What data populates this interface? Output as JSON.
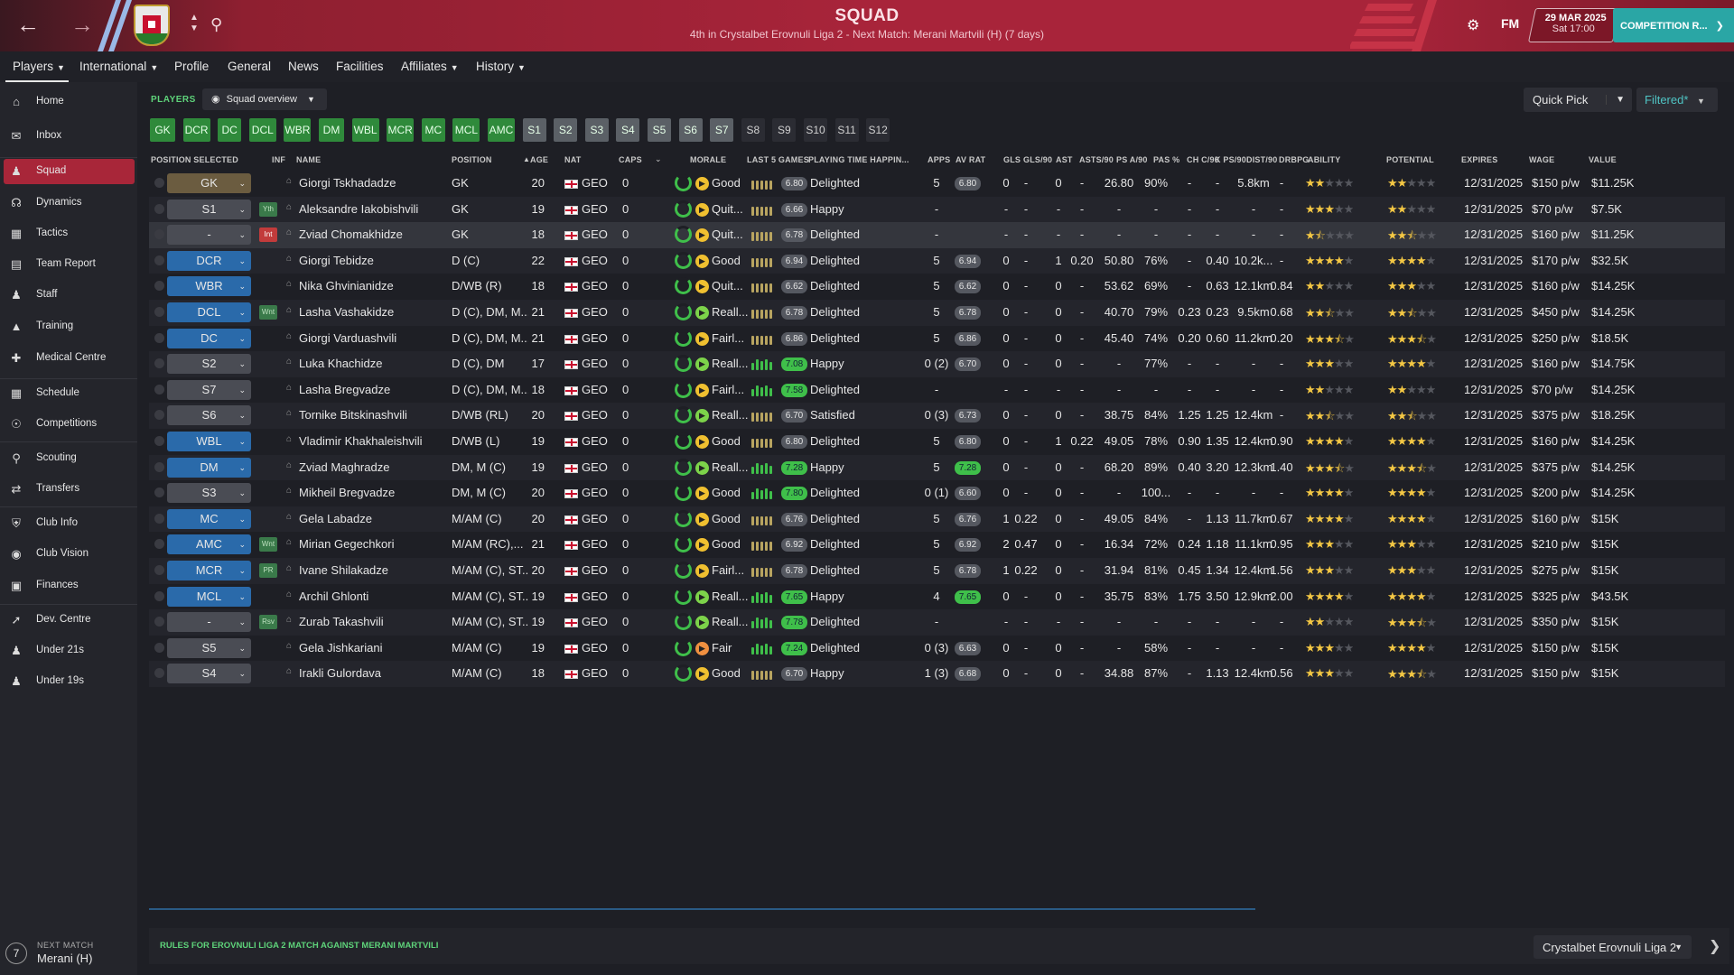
{
  "header": {
    "title": "SQUAD",
    "subtitle": "4th in Crystalbet Erovnuli Liga 2 - Next Match: Merani Martvili (H) (7 days)",
    "date": "29 MAR 2025",
    "time": "Sat 17:00",
    "logo_text": "FM",
    "competition_button": "COMPETITION R..."
  },
  "menu": {
    "tabs": [
      "Players",
      "International",
      "Profile",
      "General",
      "News",
      "Facilities",
      "Affiliates",
      "History"
    ]
  },
  "sidebar": {
    "items": [
      "Home",
      "Inbox",
      "Squad",
      "Dynamics",
      "Tactics",
      "Team Report",
      "Staff",
      "Training",
      "Medical Centre",
      "Schedule",
      "Competitions",
      "Scouting",
      "Transfers",
      "Club Info",
      "Club Vision",
      "Finances",
      "Dev. Centre",
      "Under 21s",
      "Under 19s"
    ],
    "next_match_label": "NEXT MATCH",
    "next_match_value": "Merani (H)",
    "next_match_days": "7"
  },
  "toolbar": {
    "section_label": "PLAYERS",
    "view_label": "Squad overview",
    "quick_pick": "Quick Pick",
    "filter": "Filtered*"
  },
  "pills": [
    "GK",
    "DCR",
    "DC",
    "DCL",
    "WBR",
    "DM",
    "WBL",
    "MCR",
    "MC",
    "MCL",
    "AMC",
    "S1",
    "S2",
    "S3",
    "S4",
    "S5",
    "S6",
    "S7",
    "S8",
    "S9",
    "S10",
    "S11",
    "S12"
  ],
  "columns": [
    "POSITION SELECTED",
    "INF",
    "NAME",
    "POSITION",
    "AGE",
    "NAT",
    "CAPS",
    "MORALE",
    "LAST 5 GAMES",
    "PLAYING TIME HAPPIN...",
    "APPS",
    "AV RAT",
    "GLS",
    "GLS/90",
    "AST",
    "ASTS/90",
    "PS A/90",
    "PAS %",
    "CH C/90",
    "K PS/90",
    "DIST/90",
    "DRBPG",
    "ABILITY",
    "POTENTIAL",
    "EXPIRES",
    "WAGE",
    "VALUE"
  ],
  "players": [
    {
      "sel": "GK",
      "inf": "",
      "name": "Giorgi Tskhadadze",
      "position": "GK",
      "age": "20",
      "nat": "GEO",
      "caps": "0",
      "morale": "Good",
      "last5": "6.80",
      "happiness": "Delighted",
      "apps": "5",
      "avrat": "6.80",
      "gls": "0",
      "gls90": "-",
      "ast": "0",
      "ast90": "-",
      "psa90": "26.80",
      "pas": "90%",
      "chc90": "-",
      "kps90": "-",
      "dist90": "5.8km",
      "drbpg": "-",
      "ability": 2,
      "potential": 2,
      "expires": "12/31/2025",
      "wage": "$150 p/w",
      "value": "$11.25K"
    },
    {
      "sel": "S1",
      "inf": "Yth",
      "name": "Aleksandre Iakobishvili",
      "position": "GK",
      "age": "19",
      "nat": "GEO",
      "caps": "0",
      "morale": "Quit...",
      "last5": "6.66",
      "happiness": "Happy",
      "apps": "-",
      "avrat": "",
      "gls": "-",
      "gls90": "-",
      "ast": "-",
      "ast90": "-",
      "psa90": "-",
      "pas": "-",
      "chc90": "-",
      "kps90": "-",
      "dist90": "-",
      "drbpg": "-",
      "ability": 3,
      "potential": 2,
      "expires": "12/31/2025",
      "wage": "$70 p/w",
      "value": "$7.5K"
    },
    {
      "sel": "-",
      "inf": "Int",
      "name": "Zviad Chomakhidze",
      "position": "GK",
      "age": "18",
      "nat": "GEO",
      "caps": "0",
      "morale": "Quit...",
      "last5": "6.78",
      "happiness": "Delighted",
      "apps": "-",
      "avrat": "",
      "gls": "-",
      "gls90": "-",
      "ast": "-",
      "ast90": "-",
      "psa90": "-",
      "pas": "-",
      "chc90": "-",
      "kps90": "-",
      "dist90": "-",
      "drbpg": "-",
      "ability": 1.5,
      "potential": 2.5,
      "expires": "12/31/2025",
      "wage": "$160 p/w",
      "value": "$11.25K"
    },
    {
      "sel": "DCR",
      "inf": "",
      "name": "Giorgi Tebidze",
      "position": "D (C)",
      "age": "22",
      "nat": "GEO",
      "caps": "0",
      "morale": "Good",
      "last5": "6.94",
      "happiness": "Delighted",
      "apps": "5",
      "avrat": "6.94",
      "gls": "0",
      "gls90": "-",
      "ast": "1",
      "ast90": "0.20",
      "psa90": "50.80",
      "pas": "76%",
      "chc90": "-",
      "kps90": "0.40",
      "dist90": "10.2k...",
      "drbpg": "-",
      "ability": 4,
      "potential": 4,
      "expires": "12/31/2025",
      "wage": "$170 p/w",
      "value": "$32.5K"
    },
    {
      "sel": "WBR",
      "inf": "",
      "name": "Nika Ghvinianidze",
      "position": "D/WB (R)",
      "age": "18",
      "nat": "GEO",
      "caps": "0",
      "morale": "Quit...",
      "last5": "6.62",
      "happiness": "Delighted",
      "apps": "5",
      "avrat": "6.62",
      "gls": "0",
      "gls90": "-",
      "ast": "0",
      "ast90": "-",
      "psa90": "53.62",
      "pas": "69%",
      "chc90": "-",
      "kps90": "0.63",
      "dist90": "12.1km",
      "drbpg": "0.84",
      "ability": 2,
      "potential": 3,
      "expires": "12/31/2025",
      "wage": "$160 p/w",
      "value": "$14.25K"
    },
    {
      "sel": "DCL",
      "inf": "Wnt",
      "name": "Lasha Vashakidze",
      "position": "D (C), DM, M...",
      "age": "21",
      "nat": "GEO",
      "caps": "0",
      "morale": "Reall...",
      "last5": "6.78",
      "happiness": "Delighted",
      "apps": "5",
      "avrat": "6.78",
      "gls": "0",
      "gls90": "-",
      "ast": "0",
      "ast90": "-",
      "psa90": "40.70",
      "pas": "79%",
      "chc90": "0.23",
      "kps90": "0.23",
      "dist90": "9.5km",
      "drbpg": "0.68",
      "ability": 2.5,
      "potential": 2.5,
      "expires": "12/31/2025",
      "wage": "$450 p/w",
      "value": "$14.25K"
    },
    {
      "sel": "DC",
      "inf": "",
      "name": "Giorgi Varduashvili",
      "position": "D (C), DM, M...",
      "age": "21",
      "nat": "GEO",
      "caps": "0",
      "morale": "Fairl...",
      "last5": "6.86",
      "happiness": "Delighted",
      "apps": "5",
      "avrat": "6.86",
      "gls": "0",
      "gls90": "-",
      "ast": "0",
      "ast90": "-",
      "psa90": "45.40",
      "pas": "74%",
      "chc90": "0.20",
      "kps90": "0.60",
      "dist90": "11.2km",
      "drbpg": "0.20",
      "ability": 3.5,
      "potential": 3.5,
      "expires": "12/31/2025",
      "wage": "$250 p/w",
      "value": "$18.5K"
    },
    {
      "sel": "S2",
      "inf": "",
      "name": "Luka Khachidze",
      "position": "D (C), DM",
      "age": "17",
      "nat": "GEO",
      "caps": "0",
      "morale": "Reall...",
      "last5": "7.08",
      "happiness": "Happy",
      "apps": "0 (2)",
      "avrat": "6.70",
      "gls": "0",
      "gls90": "-",
      "ast": "0",
      "ast90": "-",
      "psa90": "-",
      "pas": "77%",
      "chc90": "-",
      "kps90": "-",
      "dist90": "-",
      "drbpg": "-",
      "ability": 3,
      "potential": 4,
      "expires": "12/31/2025",
      "wage": "$160 p/w",
      "value": "$14.75K"
    },
    {
      "sel": "S7",
      "inf": "",
      "name": "Lasha Bregvadze",
      "position": "D (C), DM, M...",
      "age": "18",
      "nat": "GEO",
      "caps": "0",
      "morale": "Fairl...",
      "last5": "7.58",
      "happiness": "Delighted",
      "apps": "-",
      "avrat": "",
      "gls": "-",
      "gls90": "-",
      "ast": "-",
      "ast90": "-",
      "psa90": "-",
      "pas": "-",
      "chc90": "-",
      "kps90": "-",
      "dist90": "-",
      "drbpg": "-",
      "ability": 2,
      "potential": 2,
      "expires": "12/31/2025",
      "wage": "$70 p/w",
      "value": "$14.25K"
    },
    {
      "sel": "S6",
      "inf": "",
      "name": "Tornike Bitskinashvili",
      "position": "D/WB (RL)",
      "age": "20",
      "nat": "GEO",
      "caps": "0",
      "morale": "Reall...",
      "last5": "6.70",
      "happiness": "Satisfied",
      "apps": "0 (3)",
      "avrat": "6.73",
      "gls": "0",
      "gls90": "-",
      "ast": "0",
      "ast90": "-",
      "psa90": "38.75",
      "pas": "84%",
      "chc90": "1.25",
      "kps90": "1.25",
      "dist90": "12.4km",
      "drbpg": "-",
      "ability": 2.5,
      "potential": 2.5,
      "expires": "12/31/2025",
      "wage": "$375 p/w",
      "value": "$18.25K"
    },
    {
      "sel": "WBL",
      "inf": "",
      "name": "Vladimir Khakhaleishvili",
      "position": "D/WB (L)",
      "age": "19",
      "nat": "GEO",
      "caps": "0",
      "morale": "Good",
      "last5": "6.80",
      "happiness": "Delighted",
      "apps": "5",
      "avrat": "6.80",
      "gls": "0",
      "gls90": "-",
      "ast": "1",
      "ast90": "0.22",
      "psa90": "49.05",
      "pas": "78%",
      "chc90": "0.90",
      "kps90": "1.35",
      "dist90": "12.4km",
      "drbpg": "0.90",
      "ability": 4,
      "potential": 4,
      "expires": "12/31/2025",
      "wage": "$160 p/w",
      "value": "$14.25K"
    },
    {
      "sel": "DM",
      "inf": "",
      "name": "Zviad Maghradze",
      "position": "DM, M (C)",
      "age": "19",
      "nat": "GEO",
      "caps": "0",
      "morale": "Reall...",
      "last5": "7.28",
      "happiness": "Happy",
      "apps": "5",
      "avrat": "7.28",
      "gls": "0",
      "gls90": "-",
      "ast": "0",
      "ast90": "-",
      "psa90": "68.20",
      "pas": "89%",
      "chc90": "0.40",
      "kps90": "3.20",
      "dist90": "12.3km",
      "drbpg": "1.40",
      "ability": 3.5,
      "potential": 3.5,
      "expires": "12/31/2025",
      "wage": "$375 p/w",
      "value": "$14.25K"
    },
    {
      "sel": "S3",
      "inf": "",
      "name": "Mikheil Bregvadze",
      "position": "DM, M (C)",
      "age": "20",
      "nat": "GEO",
      "caps": "0",
      "morale": "Good",
      "last5": "7.80",
      "happiness": "Delighted",
      "apps": "0 (1)",
      "avrat": "6.60",
      "gls": "0",
      "gls90": "-",
      "ast": "0",
      "ast90": "-",
      "psa90": "-",
      "pas": "100...",
      "chc90": "-",
      "kps90": "-",
      "dist90": "-",
      "drbpg": "-",
      "ability": 4,
      "potential": 4,
      "expires": "12/31/2025",
      "wage": "$200 p/w",
      "value": "$14.25K"
    },
    {
      "sel": "MC",
      "inf": "",
      "name": "Gela Labadze",
      "position": "M/AM (C)",
      "age": "20",
      "nat": "GEO",
      "caps": "0",
      "morale": "Good",
      "last5": "6.76",
      "happiness": "Delighted",
      "apps": "5",
      "avrat": "6.76",
      "gls": "1",
      "gls90": "0.22",
      "ast": "0",
      "ast90": "-",
      "psa90": "49.05",
      "pas": "84%",
      "chc90": "-",
      "kps90": "1.13",
      "dist90": "11.7km",
      "drbpg": "0.67",
      "ability": 4,
      "potential": 4,
      "expires": "12/31/2025",
      "wage": "$160 p/w",
      "value": "$15K"
    },
    {
      "sel": "AMC",
      "inf": "Wnt",
      "name": "Mirian Gegechkori",
      "position": "M/AM (RC),...",
      "age": "21",
      "nat": "GEO",
      "caps": "0",
      "morale": "Good",
      "last5": "6.92",
      "happiness": "Delighted",
      "apps": "5",
      "avrat": "6.92",
      "gls": "2",
      "gls90": "0.47",
      "ast": "0",
      "ast90": "-",
      "psa90": "16.34",
      "pas": "72%",
      "chc90": "0.24",
      "kps90": "1.18",
      "dist90": "11.1km",
      "drbpg": "0.95",
      "ability": 3,
      "potential": 3,
      "expires": "12/31/2025",
      "wage": "$210 p/w",
      "value": "$15K"
    },
    {
      "sel": "MCR",
      "inf": "PR",
      "name": "Ivane Shilakadze",
      "position": "M/AM (C), ST...",
      "age": "20",
      "nat": "GEO",
      "caps": "0",
      "morale": "Fairl...",
      "last5": "6.78",
      "happiness": "Delighted",
      "apps": "5",
      "avrat": "6.78",
      "gls": "1",
      "gls90": "0.22",
      "ast": "0",
      "ast90": "-",
      "psa90": "31.94",
      "pas": "81%",
      "chc90": "0.45",
      "kps90": "1.34",
      "dist90": "12.4km",
      "drbpg": "1.56",
      "ability": 3,
      "potential": 3,
      "expires": "12/31/2025",
      "wage": "$275 p/w",
      "value": "$15K"
    },
    {
      "sel": "MCL",
      "inf": "",
      "name": "Archil Ghlonti",
      "position": "M/AM (C), ST...",
      "age": "19",
      "nat": "GEO",
      "caps": "0",
      "morale": "Reall...",
      "last5": "7.65",
      "happiness": "Happy",
      "apps": "4",
      "avrat": "7.65",
      "gls": "0",
      "gls90": "-",
      "ast": "0",
      "ast90": "-",
      "psa90": "35.75",
      "pas": "83%",
      "chc90": "1.75",
      "kps90": "3.50",
      "dist90": "12.9km",
      "drbpg": "2.00",
      "ability": 4,
      "potential": 4,
      "expires": "12/31/2025",
      "wage": "$325 p/w",
      "value": "$43.5K"
    },
    {
      "sel": "-",
      "inf": "Rsv",
      "name": "Zurab Takashvili",
      "position": "M/AM (C), ST...",
      "age": "19",
      "nat": "GEO",
      "caps": "0",
      "morale": "Reall...",
      "last5": "7.78",
      "happiness": "Delighted",
      "apps": "-",
      "avrat": "",
      "gls": "-",
      "gls90": "-",
      "ast": "-",
      "ast90": "-",
      "psa90": "-",
      "pas": "-",
      "chc90": "-",
      "kps90": "-",
      "dist90": "-",
      "drbpg": "-",
      "ability": 2,
      "potential": 3.5,
      "expires": "12/31/2025",
      "wage": "$350 p/w",
      "value": "$15K"
    },
    {
      "sel": "S5",
      "inf": "",
      "name": "Gela Jishkariani",
      "position": "M/AM (C)",
      "age": "19",
      "nat": "GEO",
      "caps": "0",
      "morale": "Fair",
      "last5": "7.24",
      "happiness": "Delighted",
      "apps": "0 (3)",
      "avrat": "6.63",
      "gls": "0",
      "gls90": "-",
      "ast": "0",
      "ast90": "-",
      "psa90": "-",
      "pas": "58%",
      "chc90": "-",
      "kps90": "-",
      "dist90": "-",
      "drbpg": "-",
      "ability": 3,
      "potential": 4,
      "expires": "12/31/2025",
      "wage": "$150 p/w",
      "value": "$15K"
    },
    {
      "sel": "S4",
      "inf": "",
      "name": "Irakli Gulordava",
      "position": "M/AM (C)",
      "age": "18",
      "nat": "GEO",
      "caps": "0",
      "morale": "Good",
      "last5": "6.70",
      "happiness": "Happy",
      "apps": "1 (3)",
      "avrat": "6.68",
      "gls": "0",
      "gls90": "-",
      "ast": "0",
      "ast90": "-",
      "psa90": "34.88",
      "pas": "87%",
      "chc90": "-",
      "kps90": "1.13",
      "dist90": "12.4km",
      "drbpg": "0.56",
      "ability": 3,
      "potential": 3.5,
      "expires": "12/31/2025",
      "wage": "$150 p/w",
      "value": "$15K"
    }
  ],
  "footer": {
    "rules": "RULES FOR EROVNULI LIGA 2 MATCH AGAINST MERANI MARTVILI",
    "league": "Crystalbet Erovnuli Liga 2"
  },
  "colors": {
    "accent": "#a8243a",
    "green": "#2f8a3b",
    "teal": "#2aa6a5",
    "star": "#f3c744"
  }
}
